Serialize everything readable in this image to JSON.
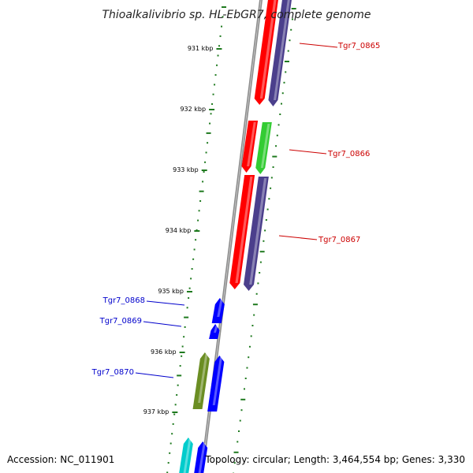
{
  "title": "Thioalkalivibrio sp. HL-EbGR7, complete genome",
  "footer": {
    "accession": "Accession: NC_011901",
    "topology": "Topology: circular; Length: 3,464,554 bp; Genes: 3,330"
  },
  "ticks": [
    "931 kbp",
    "932 kbp",
    "933 kbp",
    "934 kbp",
    "935 kbp",
    "936 kbp",
    "937 kbp"
  ],
  "colors": {
    "backbone": "#8c8c8c",
    "tick": "#1f7a1f",
    "forward_label": "#cc0000",
    "reverse_label": "#0000cc",
    "red": "#ff0000",
    "purple": "#4b3f8c",
    "green": "#33cc33",
    "olive": "#6b8e23",
    "blue": "#0000ff",
    "cyan": "#00cccc"
  },
  "forward_labels": [
    {
      "name": "Tgr7_0865"
    },
    {
      "name": "Tgr7_0866"
    },
    {
      "name": "Tgr7_0867"
    }
  ],
  "reverse_labels": [
    {
      "name": "Tgr7_0868"
    },
    {
      "name": "Tgr7_0869"
    },
    {
      "name": "Tgr7_0870"
    }
  ]
}
